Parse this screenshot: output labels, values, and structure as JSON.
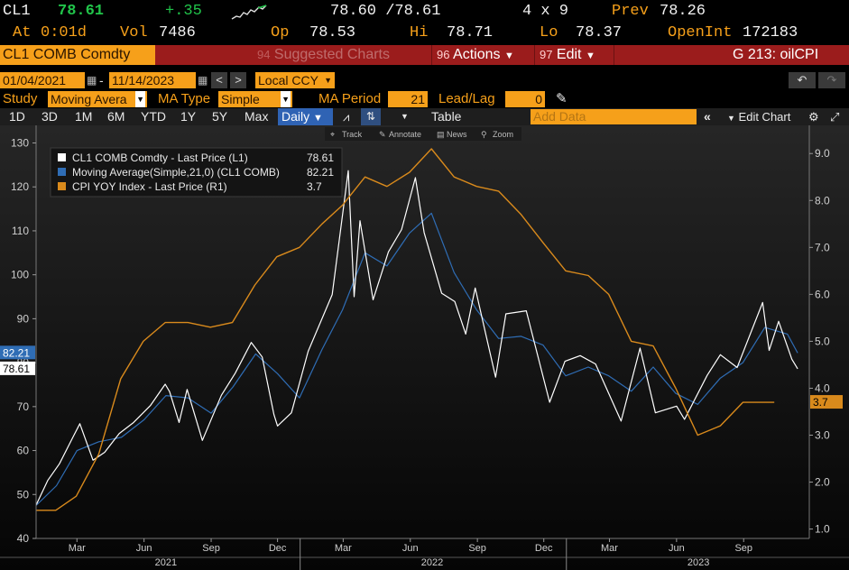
{
  "quote": {
    "ticker": "CL1",
    "last": "78.61",
    "change": "+.35",
    "bid_ask": "78.60 /78.61",
    "size": "4 x 9",
    "prev_label": "Prev",
    "prev": "78.26",
    "at_label": "At",
    "at_time": "0:01d",
    "vol_label": "Vol",
    "vol": "7486",
    "op_label": "Op",
    "op": "78.53",
    "hi_label": "Hi",
    "hi": "78.71",
    "lo_label": "Lo",
    "lo": "78.37",
    "openint_label": "OpenInt",
    "openint": "172183"
  },
  "titlebar": {
    "security": "CL1 COMB Comdty",
    "suggested_num": "94",
    "suggested": "Suggested Charts",
    "actions_num": "96",
    "actions": "Actions",
    "edit_num": "97",
    "edit": "Edit",
    "chart_id": "G 213: oilCPI"
  },
  "settings": {
    "start_date": "01/04/2021",
    "end_date": "11/14/2023",
    "dash": "-",
    "currency": "Local CCY",
    "study_label": "Study",
    "study": "Moving Avera",
    "ma_type_label": "MA Type",
    "ma_type": "Simple",
    "ma_period_label": "MA Period",
    "ma_period": "21",
    "lead_lag_label": "Lead/Lag",
    "lead_lag": "0"
  },
  "rangebar": {
    "ranges": [
      "1D",
      "3D",
      "1M",
      "6M",
      "YTD",
      "1Y",
      "5Y",
      "Max"
    ],
    "frequency": "Daily",
    "table": "Table",
    "add_data_placeholder": "Add Data",
    "edit_chart": "Edit Chart"
  },
  "chart_toolbar": {
    "track": "Track",
    "annotate": "Annotate",
    "news": "News",
    "zoom": "Zoom"
  },
  "colors": {
    "price": "#ffffff",
    "moving_average": "#2f6db5",
    "cpi": "#d98a1c",
    "title_bar": "#9b1c1c",
    "field": "#f6a01a"
  },
  "chart_data": {
    "type": "line",
    "legend": [
      {
        "label": "CL1 COMB Comdty - Last Price (L1)",
        "value": "78.61",
        "color": "#ffffff"
      },
      {
        "label": "Moving Average(Simple,21,0) (CL1 COMB)",
        "value": "82.21",
        "color": "#2f6db5"
      },
      {
        "label": "CPI YOY Index - Last Price (R1)",
        "value": "3.7",
        "color": "#d98a1c"
      }
    ],
    "left_axis": {
      "ylim": [
        40,
        134
      ],
      "ticks": [
        40,
        50,
        60,
        70,
        80,
        90,
        100,
        110,
        120,
        130
      ]
    },
    "right_axis": {
      "ylim": [
        0.8,
        9.6
      ],
      "ticks": [
        "1.0",
        "2.0",
        "3.0",
        "4.0",
        "5.0",
        "6.0",
        "7.0",
        "8.0",
        "9.0"
      ]
    },
    "x_range": [
      "2021-01-04",
      "2023-11-30"
    ],
    "month_labels": [
      {
        "label": "Mar",
        "date": "2021-03-01"
      },
      {
        "label": "Jun",
        "date": "2021-06-01"
      },
      {
        "label": "Sep",
        "date": "2021-09-01"
      },
      {
        "label": "Dec",
        "date": "2021-12-01"
      },
      {
        "label": "Mar",
        "date": "2022-03-01"
      },
      {
        "label": "Jun",
        "date": "2022-06-01"
      },
      {
        "label": "Sep",
        "date": "2022-09-01"
      },
      {
        "label": "Dec",
        "date": "2022-12-01"
      },
      {
        "label": "Mar",
        "date": "2023-03-01"
      },
      {
        "label": "Jun",
        "date": "2023-06-01"
      },
      {
        "label": "Sep",
        "date": "2023-09-01"
      }
    ],
    "year_labels": [
      {
        "label": "2021",
        "date": "2021-07-01"
      },
      {
        "label": "2022",
        "date": "2022-07-01"
      },
      {
        "label": "2023",
        "date": "2023-07-01"
      }
    ],
    "year_boundaries": [
      "2022-01-01",
      "2023-01-01"
    ],
    "badges": [
      {
        "text": "82.21",
        "axis": "left",
        "value": 82.21,
        "bg": "#2f6db5",
        "fg": "#ffffff"
      },
      {
        "text": "78.61",
        "axis": "left",
        "value": 78.61,
        "bg": "#ffffff",
        "fg": "#000000"
      },
      {
        "text": "3.7",
        "axis": "right",
        "value": 3.7,
        "bg": "#d98a1c",
        "fg": "#000000"
      }
    ],
    "series": [
      {
        "name": "CL1 COMB Comdty - Last Price (L1)",
        "axis": "left",
        "points": [
          [
            "2021-01-04",
            47.6
          ],
          [
            "2021-01-20",
            53.2
          ],
          [
            "2021-02-05",
            57.0
          ],
          [
            "2021-02-24",
            63.2
          ],
          [
            "2021-03-05",
            66.1
          ],
          [
            "2021-03-23",
            57.8
          ],
          [
            "2021-04-08",
            59.6
          ],
          [
            "2021-04-28",
            63.9
          ],
          [
            "2021-05-17",
            66.3
          ],
          [
            "2021-06-10",
            70.3
          ],
          [
            "2021-06-30",
            75.1
          ],
          [
            "2021-07-06",
            73.4
          ],
          [
            "2021-07-19",
            66.4
          ],
          [
            "2021-07-30",
            73.9
          ],
          [
            "2021-08-20",
            62.3
          ],
          [
            "2021-09-15",
            72.6
          ],
          [
            "2021-10-04",
            77.6
          ],
          [
            "2021-10-26",
            84.6
          ],
          [
            "2021-11-10",
            81.3
          ],
          [
            "2021-11-26",
            68.2
          ],
          [
            "2021-12-01",
            65.6
          ],
          [
            "2021-12-20",
            68.6
          ],
          [
            "2022-01-12",
            82.6
          ],
          [
            "2022-02-14",
            95.5
          ],
          [
            "2022-03-08",
            123.7
          ],
          [
            "2022-03-16",
            95.0
          ],
          [
            "2022-03-24",
            112.3
          ],
          [
            "2022-04-11",
            94.3
          ],
          [
            "2022-05-02",
            105.2
          ],
          [
            "2022-05-20",
            110.3
          ],
          [
            "2022-06-08",
            122.1
          ],
          [
            "2022-06-20",
            109.6
          ],
          [
            "2022-07-14",
            95.8
          ],
          [
            "2022-08-01",
            93.9
          ],
          [
            "2022-08-16",
            86.5
          ],
          [
            "2022-08-29",
            97.0
          ],
          [
            "2022-09-26",
            76.7
          ],
          [
            "2022-10-10",
            91.1
          ],
          [
            "2022-11-07",
            91.8
          ],
          [
            "2022-12-09",
            71.0
          ],
          [
            "2022-12-30",
            80.3
          ],
          [
            "2023-01-20",
            81.6
          ],
          [
            "2023-02-10",
            79.7
          ],
          [
            "2023-03-17",
            66.7
          ],
          [
            "2023-04-12",
            83.3
          ],
          [
            "2023-05-03",
            68.6
          ],
          [
            "2023-06-01",
            70.1
          ],
          [
            "2023-06-12",
            67.1
          ],
          [
            "2023-07-13",
            77.1
          ],
          [
            "2023-07-31",
            81.8
          ],
          [
            "2023-08-23",
            78.9
          ],
          [
            "2023-09-27",
            93.7
          ],
          [
            "2023-10-06",
            82.8
          ],
          [
            "2023-10-19",
            89.4
          ],
          [
            "2023-11-06",
            80.8
          ],
          [
            "2023-11-14",
            78.6
          ]
        ]
      },
      {
        "name": "Moving Average(Simple,21,0) (CL1 COMB)",
        "axis": "left",
        "points": [
          [
            "2021-01-04",
            47.5
          ],
          [
            "2021-02-01",
            52.0
          ],
          [
            "2021-03-01",
            60.0
          ],
          [
            "2021-03-31",
            62.0
          ],
          [
            "2021-05-01",
            63.0
          ],
          [
            "2021-06-01",
            67.0
          ],
          [
            "2021-07-01",
            72.5
          ],
          [
            "2021-07-31",
            72.0
          ],
          [
            "2021-09-01",
            68.5
          ],
          [
            "2021-10-01",
            74.5
          ],
          [
            "2021-11-01",
            82.0
          ],
          [
            "2021-12-01",
            77.5
          ],
          [
            "2021-12-31",
            72.0
          ],
          [
            "2022-01-31",
            83.0
          ],
          [
            "2022-02-28",
            92.0
          ],
          [
            "2022-03-31",
            105.0
          ],
          [
            "2022-04-30",
            102.0
          ],
          [
            "2022-05-31",
            109.5
          ],
          [
            "2022-06-30",
            114.0
          ],
          [
            "2022-07-31",
            100.5
          ],
          [
            "2022-08-31",
            92.0
          ],
          [
            "2022-09-30",
            85.5
          ],
          [
            "2022-10-31",
            86.0
          ],
          [
            "2022-11-30",
            84.0
          ],
          [
            "2022-12-31",
            77.0
          ],
          [
            "2023-01-31",
            79.0
          ],
          [
            "2023-02-28",
            77.0
          ],
          [
            "2023-03-31",
            73.5
          ],
          [
            "2023-04-30",
            79.0
          ],
          [
            "2023-05-31",
            73.0
          ],
          [
            "2023-06-30",
            70.5
          ],
          [
            "2023-07-31",
            76.5
          ],
          [
            "2023-08-31",
            80.0
          ],
          [
            "2023-09-30",
            88.0
          ],
          [
            "2023-10-31",
            86.5
          ],
          [
            "2023-11-14",
            82.2
          ]
        ]
      },
      {
        "name": "CPI YOY Index - Last Price (R1)",
        "axis": "right",
        "points": [
          [
            "2021-01-04",
            1.4
          ],
          [
            "2021-01-31",
            1.4
          ],
          [
            "2021-02-28",
            1.7
          ],
          [
            "2021-03-31",
            2.6
          ],
          [
            "2021-04-30",
            4.2
          ],
          [
            "2021-05-31",
            5.0
          ],
          [
            "2021-06-30",
            5.4
          ],
          [
            "2021-07-31",
            5.4
          ],
          [
            "2021-08-31",
            5.3
          ],
          [
            "2021-09-30",
            5.4
          ],
          [
            "2021-10-31",
            6.2
          ],
          [
            "2021-11-30",
            6.8
          ],
          [
            "2021-12-31",
            7.0
          ],
          [
            "2022-01-31",
            7.5
          ],
          [
            "2022-02-28",
            7.9
          ],
          [
            "2022-03-31",
            8.5
          ],
          [
            "2022-04-30",
            8.3
          ],
          [
            "2022-05-31",
            8.6
          ],
          [
            "2022-06-30",
            9.1
          ],
          [
            "2022-07-31",
            8.5
          ],
          [
            "2022-08-31",
            8.3
          ],
          [
            "2022-09-30",
            8.2
          ],
          [
            "2022-10-31",
            7.7
          ],
          [
            "2022-11-30",
            7.1
          ],
          [
            "2022-12-31",
            6.5
          ],
          [
            "2023-01-31",
            6.4
          ],
          [
            "2023-02-28",
            6.0
          ],
          [
            "2023-03-31",
            5.0
          ],
          [
            "2023-04-30",
            4.9
          ],
          [
            "2023-05-31",
            4.0
          ],
          [
            "2023-06-30",
            3.0
          ],
          [
            "2023-07-31",
            3.2
          ],
          [
            "2023-08-31",
            3.7
          ],
          [
            "2023-09-30",
            3.7
          ],
          [
            "2023-10-13",
            3.7
          ]
        ]
      }
    ]
  }
}
